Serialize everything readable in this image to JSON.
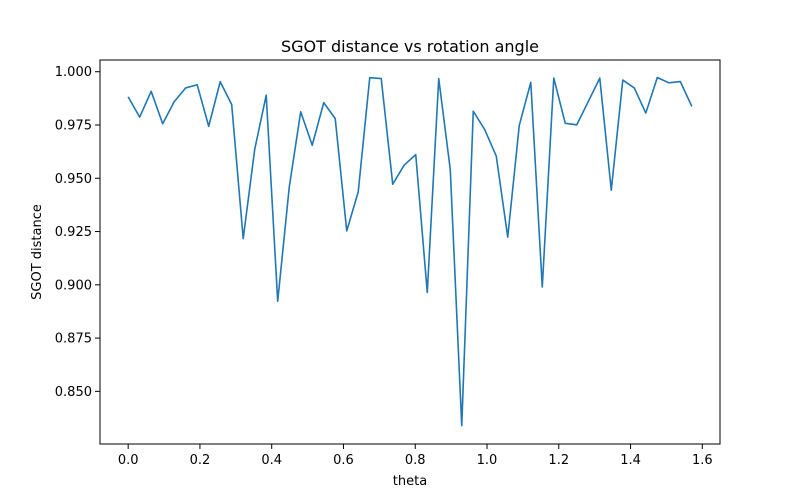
{
  "chart_data": {
    "type": "line",
    "title": "SGOT distance vs rotation angle",
    "xlabel": "theta",
    "ylabel": "SGOT distance",
    "xlim": [
      -0.0785,
      1.6493
    ],
    "ylim": [
      0.8253,
      1.0055
    ],
    "xticks": [
      0.0,
      0.2,
      0.4,
      0.6,
      0.8,
      1.0,
      1.2,
      1.4,
      1.6
    ],
    "xtick_labels": [
      "0.0",
      "0.2",
      "0.4",
      "0.6",
      "0.8",
      "1.0",
      "1.2",
      "1.4",
      "1.6"
    ],
    "yticks": [
      0.85,
      0.875,
      0.9,
      0.925,
      0.95,
      0.975,
      1.0
    ],
    "ytick_labels": [
      "0.850",
      "0.875",
      "0.900",
      "0.925",
      "0.950",
      "0.975",
      "1.000"
    ],
    "grid": false,
    "color": "#1f77b4",
    "series": [
      {
        "x": [
          0.0,
          0.0321,
          0.0641,
          0.0962,
          0.1282,
          0.1603,
          0.1923,
          0.2244,
          0.2565,
          0.2885,
          0.3206,
          0.3526,
          0.3847,
          0.4167,
          0.4488,
          0.4808,
          0.5129,
          0.545,
          0.577,
          0.6091,
          0.6411,
          0.6732,
          0.7052,
          0.7373,
          0.7693,
          0.8014,
          0.8335,
          0.8655,
          0.8976,
          0.9296,
          0.9617,
          0.9937,
          1.0258,
          1.0578,
          1.0899,
          1.122,
          1.154,
          1.1861,
          1.2181,
          1.2502,
          1.2822,
          1.3143,
          1.3463,
          1.3784,
          1.4105,
          1.4425,
          1.4746,
          1.5066,
          1.5387,
          1.5708
        ],
        "values": [
          0.9882,
          0.9787,
          0.9908,
          0.9756,
          0.9859,
          0.9924,
          0.9939,
          0.9744,
          0.9953,
          0.9846,
          0.9217,
          0.9635,
          0.989,
          0.8923,
          0.9457,
          0.9812,
          0.9655,
          0.9855,
          0.978,
          0.9253,
          0.9436,
          0.9972,
          0.9968,
          0.9472,
          0.9562,
          0.9611,
          0.8964,
          0.9968,
          0.9541,
          0.8339,
          0.9815,
          0.9728,
          0.9604,
          0.9224,
          0.9748,
          0.995,
          0.899,
          0.997,
          0.9758,
          0.9751,
          0.986,
          0.997,
          0.9444,
          0.9961,
          0.9924,
          0.9806,
          0.9973,
          0.9948,
          0.9954,
          0.9837
        ]
      }
    ]
  }
}
